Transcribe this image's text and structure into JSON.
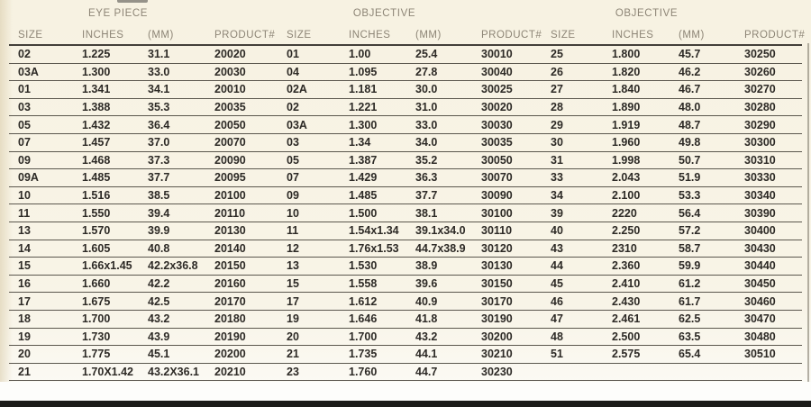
{
  "page": {
    "background_color": "#f8f4e7",
    "bottom_bar_color": "#1b1b19",
    "line_color": "#5b574e",
    "header_text_color": "#8d8576",
    "data_text_color": "#2d2a26"
  },
  "table": {
    "group_headers": [
      {
        "label": "EYE PIECE"
      },
      {
        "label": "OBJECTIVE"
      },
      {
        "label": "OBJECTIVE"
      }
    ],
    "column_headers": [
      "SIZE",
      "INCHES",
      "(MM)",
      "PRODUCT#",
      "SIZE",
      "INCHES",
      "(MM)",
      "PRODUCT#",
      "SIZE",
      "INCHES",
      "(MM)",
      "PRODUCT#"
    ],
    "rows": [
      [
        "02",
        "1.225",
        "31.1",
        "20020",
        "01",
        "1.00",
        "25.4",
        "30010",
        "25",
        "1.800",
        "45.7",
        "30250"
      ],
      [
        "03A",
        "1.300",
        "33.0",
        "20030",
        "04",
        "1.095",
        "27.8",
        "30040",
        "26",
        "1.820",
        "46.2",
        "30260"
      ],
      [
        "01",
        "1.341",
        "34.1",
        "20010",
        "02A",
        "1.181",
        "30.0",
        "30025",
        "27",
        "1.840",
        "46.7",
        "30270"
      ],
      [
        "03",
        "1.388",
        "35.3",
        "20035",
        "02",
        "1.221",
        "31.0",
        "30020",
        "28",
        "1.890",
        "48.0",
        "30280"
      ],
      [
        "05",
        "1.432",
        "36.4",
        "20050",
        "03A",
        "1.300",
        "33.0",
        "30030",
        "29",
        "1.919",
        "48.7",
        "30290"
      ],
      [
        "07",
        "1.457",
        "37.0",
        "20070",
        "03",
        "1.34",
        "34.0",
        "30035",
        "30",
        "1.960",
        "49.8",
        "30300"
      ],
      [
        "09",
        "1.468",
        "37.3",
        "20090",
        "05",
        "1.387",
        "35.2",
        "30050",
        "31",
        "1.998",
        "50.7",
        "30310"
      ],
      [
        "09A",
        "1.485",
        "37.7",
        "20095",
        "07",
        "1.429",
        "36.3",
        "30070",
        "33",
        "2.043",
        "51.9",
        "30330"
      ],
      [
        "10",
        "1.516",
        "38.5",
        "20100",
        "09",
        "1.485",
        "37.7",
        "30090",
        "34",
        "2.100",
        "53.3",
        "30340"
      ],
      [
        "11",
        "1.550",
        "39.4",
        "20110",
        "10",
        "1.500",
        "38.1",
        "30100",
        "39",
        "2220",
        "56.4",
        "30390"
      ],
      [
        "13",
        "1.570",
        "39.9",
        "20130",
        "11",
        "1.54x1.34",
        "39.1x34.0",
        "30110",
        "40",
        "2.250",
        "57.2",
        "30400"
      ],
      [
        "14",
        "1.605",
        "40.8",
        "20140",
        "12",
        "1.76x1.53",
        "44.7x38.9",
        "30120",
        "43",
        "2310",
        "58.7",
        "30430"
      ],
      [
        "15",
        "1.66x1.45",
        "42.2x36.8",
        "20150",
        "13",
        "1.530",
        "38.9",
        "30130",
        "44",
        "2.360",
        "59.9",
        "30440"
      ],
      [
        "16",
        "1.660",
        "42.2",
        "20160",
        "15",
        "1.558",
        "39.6",
        "30150",
        "45",
        "2.410",
        "61.2",
        "30450"
      ],
      [
        "17",
        "1.675",
        "42.5",
        "20170",
        "17",
        "1.612",
        "40.9",
        "30170",
        "46",
        "2.430",
        "61.7",
        "30460"
      ],
      [
        "18",
        "1.700",
        "43.2",
        "20180",
        "19",
        "1.646",
        "41.8",
        "30190",
        "47",
        "2.461",
        "62.5",
        "30470"
      ],
      [
        "19",
        "1.730",
        "43.9",
        "20190",
        "20",
        "1.700",
        "43.2",
        "30200",
        "48",
        "2.500",
        "63.5",
        "30480"
      ],
      [
        "20",
        "1.775",
        "45.1",
        "20200",
        "21",
        "1.735",
        "44.1",
        "30210",
        "51",
        "2.575",
        "65.4",
        "30510"
      ],
      [
        "21",
        "1.70X1.42",
        "43.2X36.1",
        "20210",
        "23",
        "1.760",
        "44.7",
        "30230",
        "",
        "",
        "",
        ""
      ]
    ]
  }
}
